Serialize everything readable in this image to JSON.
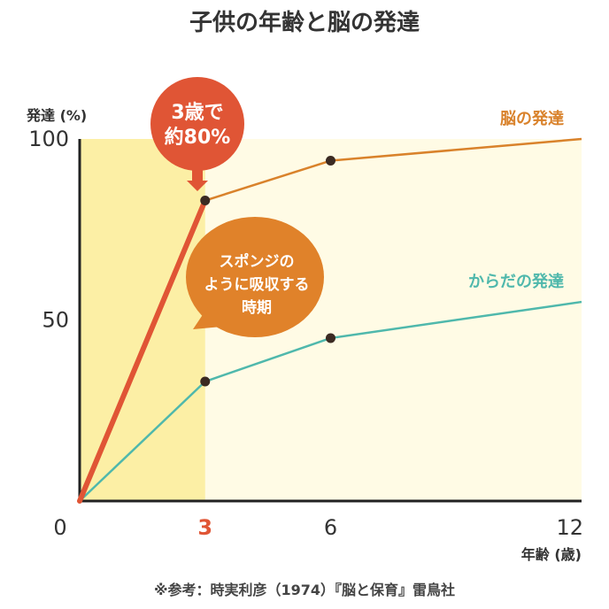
{
  "chart_data": {
    "type": "line",
    "title": "子供の年齢と脳の発達",
    "ylabel": "発達 (%)",
    "xlabel": "年齢 (歳)",
    "xlim": [
      0,
      12
    ],
    "ylim": [
      0,
      100
    ],
    "x_ticks": [
      "0",
      "3",
      "6",
      "12"
    ],
    "y_ticks": [
      "100",
      "50"
    ],
    "highlight_x_tick": "3",
    "highlight_range_x": [
      0,
      3
    ],
    "series": [
      {
        "name": "脳の発達",
        "color": "#d9822b",
        "points": [
          [
            0,
            0
          ],
          [
            3,
            83
          ],
          [
            6,
            94
          ],
          [
            12,
            100
          ]
        ]
      },
      {
        "name": "からだの発達",
        "color": "#4fb8ac",
        "points": [
          [
            0,
            0
          ],
          [
            3,
            33
          ],
          [
            6,
            45
          ],
          [
            12,
            55
          ]
        ]
      }
    ],
    "highlight_color": "#e05535",
    "annotations": {
      "callout_1": {
        "lines": [
          "3歳で",
          "約80%"
        ],
        "color": "#e05535"
      },
      "callout_2": {
        "lines": [
          "スポンジの",
          "ように吸収する",
          "時期"
        ],
        "color": "#e0822a"
      }
    },
    "source_note": "※参考：時実利彦（1974）『脳と保育』雷鳥社"
  }
}
